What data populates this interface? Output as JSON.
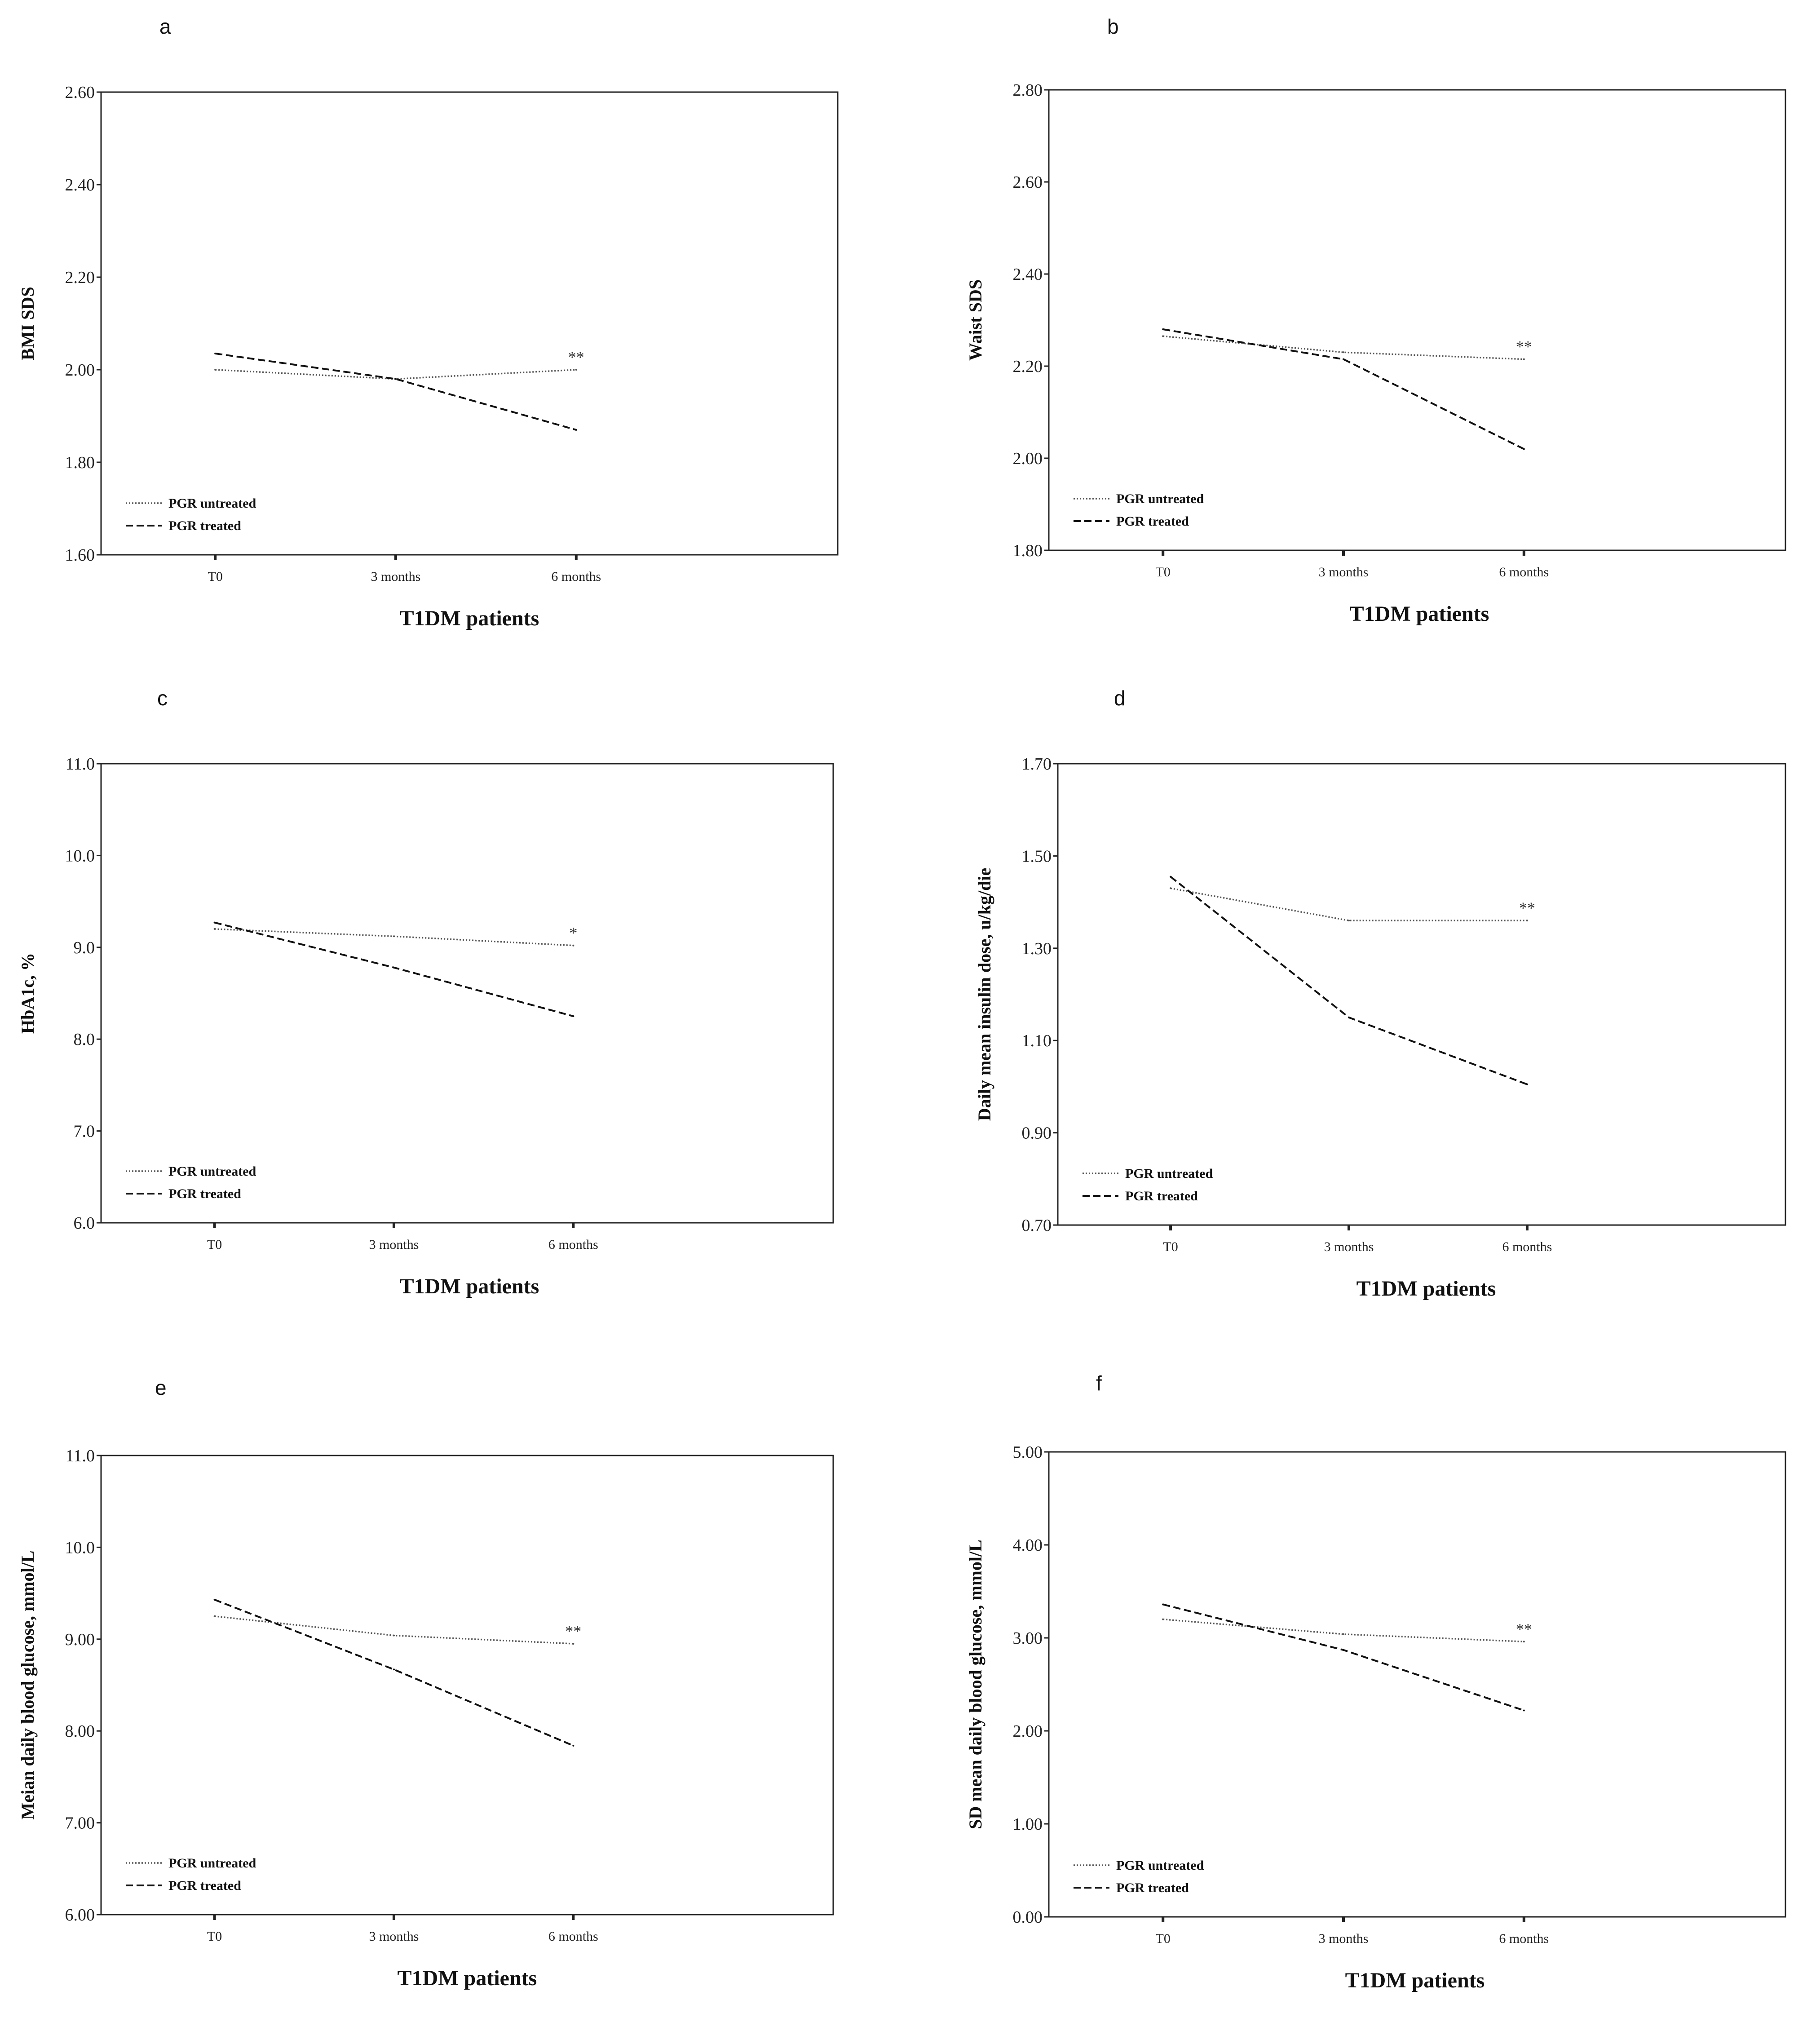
{
  "chart_data": [
    {
      "type": "line",
      "panel_label": "a",
      "xlabel": "T1DM patients",
      "ylabel": "BMI SDS",
      "categories": [
        "T0",
        "3 months",
        "6 months"
      ],
      "ylim": [
        1.6,
        2.6
      ],
      "yticks": [
        "1.60",
        "1.80",
        "2.00",
        "2.20",
        "2.40",
        "2.60"
      ],
      "series": [
        {
          "name": "PGR untreated",
          "values": [
            2.0,
            1.98,
            2.0
          ]
        },
        {
          "name": "PGR treated",
          "values": [
            2.035,
            1.98,
            1.87
          ]
        }
      ],
      "annotation": "**"
    },
    {
      "type": "line",
      "panel_label": "b",
      "xlabel": "T1DM patients",
      "ylabel": "Waist SDS",
      "categories": [
        "T0",
        "3 months",
        "6 months"
      ],
      "ylim": [
        1.8,
        2.8
      ],
      "yticks": [
        "1.80",
        "2.00",
        "2.20",
        "2.40",
        "2.60",
        "2.80"
      ],
      "series": [
        {
          "name": "PGR untreated",
          "values": [
            2.265,
            2.23,
            2.215
          ]
        },
        {
          "name": "PGR treated",
          "values": [
            2.28,
            2.215,
            2.02
          ]
        }
      ],
      "annotation": "**"
    },
    {
      "type": "line",
      "panel_label": "c",
      "xlabel": "T1DM patients",
      "ylabel": "HbA1c, %",
      "categories": [
        "T0",
        "3 months",
        "6 months"
      ],
      "ylim": [
        6.0,
        11.0
      ],
      "yticks": [
        "6.0",
        "7.0",
        "8.0",
        "9.0",
        "10.0",
        "11.0"
      ],
      "series": [
        {
          "name": "PGR untreated",
          "values": [
            9.2,
            9.12,
            9.02
          ]
        },
        {
          "name": "PGR treated",
          "values": [
            9.27,
            8.78,
            8.25
          ]
        }
      ],
      "annotation": "*"
    },
    {
      "type": "line",
      "panel_label": "d",
      "xlabel": "T1DM patients",
      "ylabel": "Daily mean insulin dose, u/kg/die",
      "categories": [
        "T0",
        "3 months",
        "6 months"
      ],
      "ylim": [
        0.7,
        1.7
      ],
      "yticks": [
        "0.70",
        "0.90",
        "1.10",
        "1.30",
        "1.50",
        "1.70"
      ],
      "series": [
        {
          "name": "PGR untreated",
          "values": [
            1.43,
            1.36,
            1.36
          ]
        },
        {
          "name": "PGR treated",
          "values": [
            1.455,
            1.15,
            1.005
          ]
        }
      ],
      "annotation": "**"
    },
    {
      "type": "line",
      "panel_label": "e",
      "xlabel": "T1DM patients",
      "ylabel": "Meian daily blood glucose, mmol/L",
      "categories": [
        "T0",
        "3 months",
        "6 months"
      ],
      "ylim": [
        6.0,
        11.0
      ],
      "yticks": [
        "6.00",
        "7.00",
        "8.00",
        "9.00",
        "10.0",
        "11.0"
      ],
      "series": [
        {
          "name": "PGR untreated",
          "values": [
            9.25,
            9.04,
            8.95
          ]
        },
        {
          "name": "PGR treated",
          "values": [
            9.43,
            8.67,
            7.84
          ]
        }
      ],
      "annotation": "**"
    },
    {
      "type": "line",
      "panel_label": "f",
      "xlabel": "T1DM patients",
      "ylabel": "SD mean daily blood glucose, mmol/L",
      "categories": [
        "T0",
        "3 months",
        "6 months"
      ],
      "ylim": [
        0.0,
        5.0
      ],
      "yticks": [
        "0.00",
        "1.00",
        "2.00",
        "3.00",
        "4.00",
        "5.00"
      ],
      "series": [
        {
          "name": "PGR untreated",
          "values": [
            3.2,
            3.04,
            2.96
          ]
        },
        {
          "name": "PGR treated",
          "values": [
            3.36,
            2.87,
            2.22
          ]
        }
      ],
      "annotation": "**"
    }
  ]
}
